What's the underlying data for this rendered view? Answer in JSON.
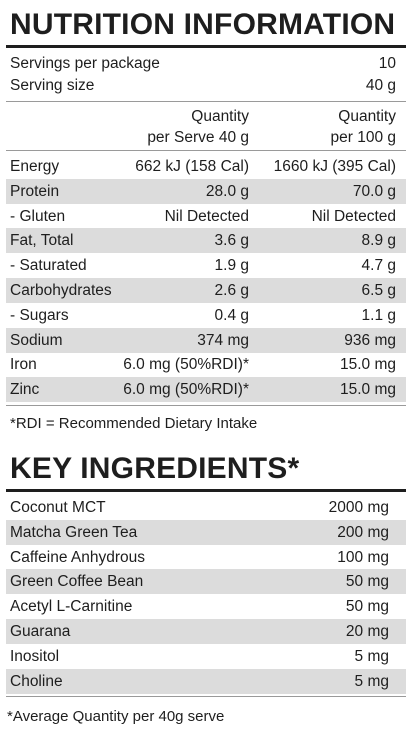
{
  "nutrition": {
    "title": "NUTRITION INFORMATION",
    "servings_label": "Servings per package",
    "servings_value": "10",
    "serving_size_label": "Serving size",
    "serving_size_value": "40 g",
    "col1_header": [
      "Quantity",
      "per Serve 40 g"
    ],
    "col2_header": [
      "Quantity",
      "per 100 g"
    ],
    "rows": [
      {
        "label": "Energy",
        "per_serve": "662 kJ (158 Cal)",
        "per_100g": "1660 kJ (395 Cal)"
      },
      {
        "label": "Protein",
        "per_serve": "28.0 g",
        "per_100g": "70.0 g"
      },
      {
        "label": "- Gluten",
        "per_serve": "Nil Detected",
        "per_100g": "Nil Detected"
      },
      {
        "label": "Fat, Total",
        "per_serve": "3.6 g",
        "per_100g": "8.9 g"
      },
      {
        "label": "- Saturated",
        "per_serve": "1.9 g",
        "per_100g": "4.7 g"
      },
      {
        "label": "Carbohydrates",
        "per_serve": "2.6 g",
        "per_100g": "6.5 g"
      },
      {
        "label": "- Sugars",
        "per_serve": "0.4 g",
        "per_100g": "1.1 g"
      },
      {
        "label": "Sodium",
        "per_serve": "374 mg",
        "per_100g": "936 mg"
      },
      {
        "label": "Iron",
        "per_serve": "6.0 mg (50%RDI)*",
        "per_100g": "15.0 mg"
      },
      {
        "label": "Zinc",
        "per_serve": "6.0 mg (50%RDI)*",
        "per_100g": "15.0 mg"
      }
    ],
    "rdi_note": "*RDI = Recommended Dietary Intake"
  },
  "ingredients": {
    "title": "KEY INGREDIENTS*",
    "rows": [
      {
        "label": "Coconut MCT",
        "amount": "2000 mg"
      },
      {
        "label": "Matcha Green Tea",
        "amount": "200 mg"
      },
      {
        "label": "Caffeine Anhydrous",
        "amount": "100 mg"
      },
      {
        "label": "Green Coffee Bean",
        "amount": "50 mg"
      },
      {
        "label": "Acetyl L-Carnitine",
        "amount": "50 mg"
      },
      {
        "label": "Guarana",
        "amount": "20 mg"
      },
      {
        "label": "Inositol",
        "amount": "5 mg"
      },
      {
        "label": "Choline",
        "amount": "5 mg"
      }
    ],
    "footnote": "*Average Quantity per 40g serve"
  }
}
